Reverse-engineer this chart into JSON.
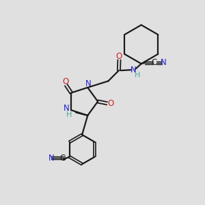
{
  "bg_color": "#e0e0e0",
  "bond_color": "#1a1a1a",
  "N_color": "#2222cc",
  "O_color": "#cc2222",
  "NH_color": "#44aa99",
  "figsize": [
    3.0,
    3.0
  ],
  "dpi": 100,
  "xlim": [
    0,
    10
  ],
  "ylim": [
    0,
    10
  ]
}
